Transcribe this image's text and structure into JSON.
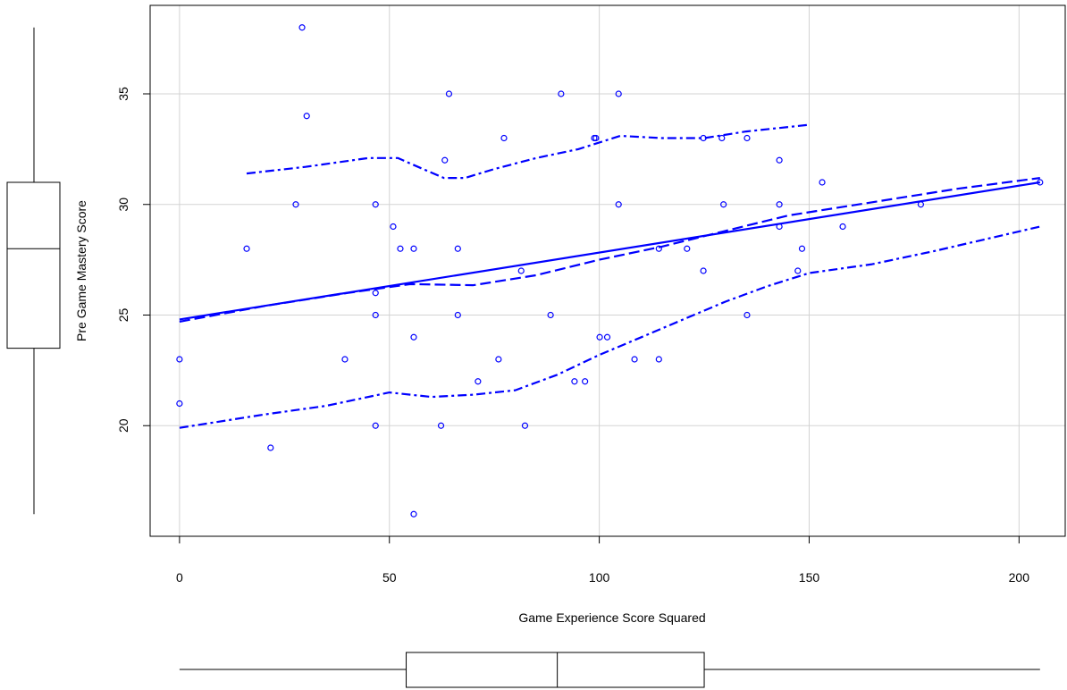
{
  "chart_data": {
    "type": "scatter",
    "xlabel": "Game Experience Score Squared",
    "ylabel": "Pre Game Mastery Score",
    "xlim": [
      -7,
      211
    ],
    "ylim": [
      15,
      39
    ],
    "x_ticks": [
      0,
      50,
      100,
      150,
      200
    ],
    "y_ticks": [
      20,
      25,
      30,
      35
    ],
    "grid": true,
    "marginal_boxplots": {
      "x": {
        "min": 0,
        "q1": 54,
        "median": 90,
        "q3": 125,
        "max": 205
      },
      "y": {
        "min": 16,
        "q1": 23.5,
        "median": 28,
        "q3": 31,
        "max": 38
      }
    },
    "points": [
      [
        0,
        23
      ],
      [
        0,
        21
      ],
      [
        16,
        28
      ],
      [
        21.7,
        19
      ],
      [
        27.7,
        30
      ],
      [
        29.2,
        38
      ],
      [
        30.3,
        34
      ],
      [
        39.4,
        23
      ],
      [
        46.7,
        30
      ],
      [
        46.7,
        26
      ],
      [
        46.7,
        25
      ],
      [
        46.7,
        20
      ],
      [
        50.9,
        29
      ],
      [
        52.6,
        28
      ],
      [
        55.8,
        28
      ],
      [
        55.8,
        24
      ],
      [
        55.8,
        16
      ],
      [
        62.3,
        20
      ],
      [
        63.2,
        32
      ],
      [
        64.2,
        35
      ],
      [
        66.3,
        28
      ],
      [
        66.3,
        25
      ],
      [
        71.1,
        22
      ],
      [
        76,
        23
      ],
      [
        77.3,
        33
      ],
      [
        81.4,
        27
      ],
      [
        82.3,
        20
      ],
      [
        88.4,
        25
      ],
      [
        90.9,
        35
      ],
      [
        94.1,
        22
      ],
      [
        96.6,
        22
      ],
      [
        98.8,
        33
      ],
      [
        99.2,
        33
      ],
      [
        100.1,
        24
      ],
      [
        101.9,
        24
      ],
      [
        104.6,
        35
      ],
      [
        104.6,
        30
      ],
      [
        108.4,
        23
      ],
      [
        114.2,
        28
      ],
      [
        114.2,
        23
      ],
      [
        120.9,
        28
      ],
      [
        124.8,
        33
      ],
      [
        124.8,
        27
      ],
      [
        129.2,
        33
      ],
      [
        129.6,
        30
      ],
      [
        135.2,
        33
      ],
      [
        135.2,
        25
      ],
      [
        142.9,
        32
      ],
      [
        142.9,
        30
      ],
      [
        142.9,
        29
      ],
      [
        147.3,
        27
      ],
      [
        148.3,
        28
      ],
      [
        153.1,
        31
      ],
      [
        158,
        29
      ],
      [
        176.6,
        30
      ],
      [
        205,
        31
      ]
    ],
    "series": [
      {
        "style": "solid",
        "points": [
          [
            0,
            24.8
          ],
          [
            205,
            31
          ]
        ]
      },
      {
        "style": "dashed",
        "points": [
          [
            0,
            24.7
          ],
          [
            20,
            25.4
          ],
          [
            40,
            26
          ],
          [
            55,
            26.4
          ],
          [
            70,
            26.35
          ],
          [
            85,
            26.8
          ],
          [
            100,
            27.5
          ],
          [
            115,
            28.1
          ],
          [
            130,
            28.8
          ],
          [
            145,
            29.5
          ],
          [
            165,
            30.1
          ],
          [
            185,
            30.7
          ],
          [
            205,
            31.2
          ]
        ]
      },
      {
        "style": "dotdash",
        "points": [
          [
            16,
            31.4
          ],
          [
            30,
            31.7
          ],
          [
            45,
            32.1
          ],
          [
            52,
            32.1
          ],
          [
            58,
            31.6
          ],
          [
            63,
            31.2
          ],
          [
            68,
            31.2
          ],
          [
            75,
            31.6
          ],
          [
            85,
            32.1
          ],
          [
            95,
            32.5
          ],
          [
            105,
            33.1
          ],
          [
            115,
            33
          ],
          [
            125,
            33
          ],
          [
            135,
            33.3
          ],
          [
            150,
            33.6
          ]
        ]
      },
      {
        "style": "dotdash",
        "points": [
          [
            0,
            19.9
          ],
          [
            20,
            20.5
          ],
          [
            35,
            20.9
          ],
          [
            50,
            21.5
          ],
          [
            60,
            21.3
          ],
          [
            70,
            21.4
          ],
          [
            80,
            21.6
          ],
          [
            90,
            22.3
          ],
          [
            100,
            23.2
          ],
          [
            110,
            24
          ],
          [
            120,
            24.8
          ],
          [
            130,
            25.6
          ],
          [
            140,
            26.3
          ],
          [
            150,
            26.9
          ],
          [
            165,
            27.3
          ],
          [
            180,
            27.9
          ],
          [
            205,
            29
          ]
        ]
      }
    ]
  },
  "colors": {
    "series": "#0000ff",
    "grid": "#d3d3d3",
    "axis": "#000000"
  }
}
